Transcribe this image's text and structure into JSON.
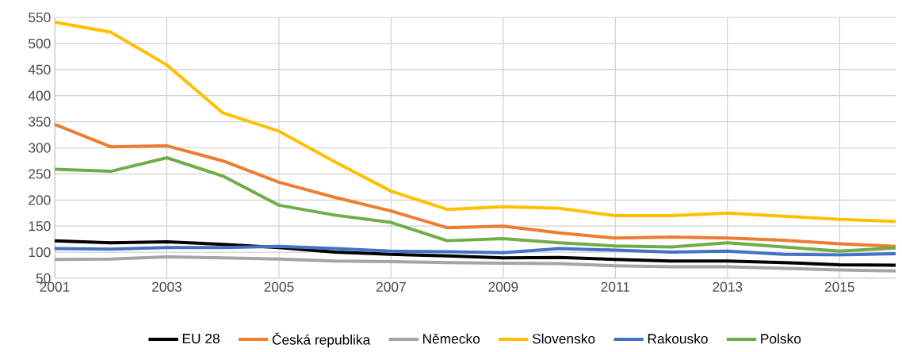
{
  "chart_data": {
    "type": "line",
    "x": [
      2001,
      2002,
      2003,
      2004,
      2005,
      2006,
      2007,
      2008,
      2009,
      2010,
      2011,
      2012,
      2013,
      2014,
      2015,
      2016
    ],
    "xlim": [
      2001,
      2016
    ],
    "xticks": [
      2001,
      2003,
      2005,
      2007,
      2009,
      2011,
      2013,
      2015
    ],
    "ylim": [
      50,
      550
    ],
    "yticks": [
      50,
      100,
      150,
      200,
      250,
      300,
      350,
      400,
      450,
      500,
      550
    ],
    "grid": true,
    "legend": "bottom",
    "marker": "none",
    "line_style": "solid",
    "series": [
      {
        "name": "EU 28",
        "color": "#000000",
        "values": [
          122,
          118,
          120,
          115,
          109,
          100,
          96,
          93,
          89,
          90,
          86,
          83,
          83,
          80,
          76,
          75
        ]
      },
      {
        "name": "Česká republika",
        "color": "#ed7d31",
        "values": [
          345,
          302,
          304,
          275,
          234,
          205,
          179,
          147,
          150,
          137,
          127,
          129,
          127,
          123,
          116,
          111
        ]
      },
      {
        "name": "Německo",
        "color": "#a5a5a5",
        "values": [
          86,
          87,
          91,
          89,
          87,
          83,
          82,
          80,
          79,
          78,
          74,
          72,
          72,
          69,
          66,
          64
        ]
      },
      {
        "name": "Slovensko",
        "color": "#ffc000",
        "values": [
          541,
          522,
          459,
          367,
          332,
          273,
          217,
          182,
          187,
          184,
          170,
          170,
          175,
          169,
          163,
          159
        ]
      },
      {
        "name": "Rakousko",
        "color": "#4472c4",
        "values": [
          107,
          106,
          109,
          109,
          111,
          107,
          102,
          101,
          99,
          107,
          104,
          100,
          102,
          96,
          95,
          97
        ]
      },
      {
        "name": "Polsko",
        "color": "#70ad47",
        "values": [
          259,
          255,
          281,
          246,
          190,
          171,
          157,
          122,
          126,
          118,
          112,
          110,
          118,
          110,
          102,
          108
        ]
      }
    ]
  }
}
